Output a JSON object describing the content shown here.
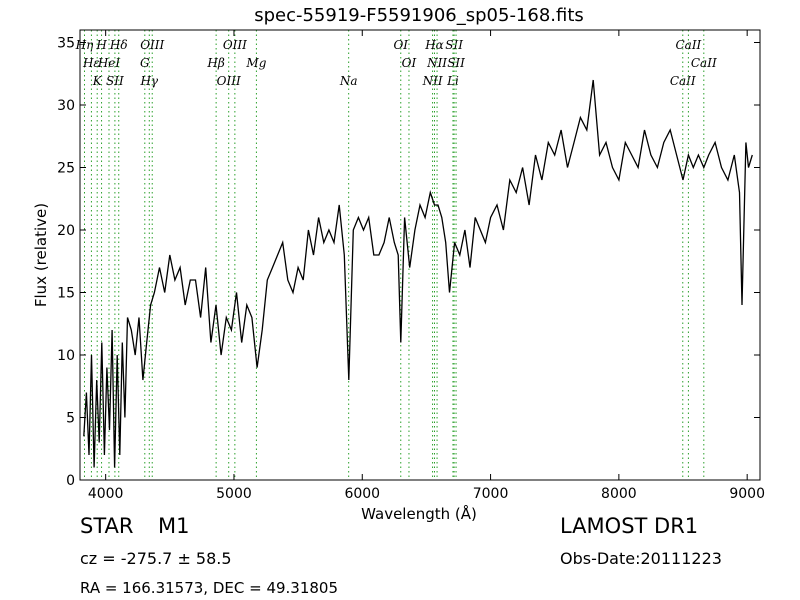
{
  "chart_data": {
    "type": "line",
    "title": "spec-55919-F5591906_sp05-168.fits",
    "xlabel": "Wavelength (Å)",
    "ylabel": "Flux (relative)",
    "xlim": [
      3800,
      9100
    ],
    "ylim": [
      0,
      36
    ],
    "xticks": [
      4000,
      5000,
      6000,
      7000,
      8000,
      9000
    ],
    "yticks": [
      0,
      5,
      10,
      15,
      20,
      25,
      30,
      35
    ],
    "grid": false,
    "line_color": "#000000",
    "marker_color": "#2ca02c",
    "series": [
      {
        "x": [
          3830,
          3850,
          3870,
          3890,
          3910,
          3930,
          3950,
          3970,
          3990,
          4010,
          4030,
          4050,
          4070,
          4090,
          4110,
          4130,
          4150,
          4170,
          4200,
          4230,
          4260,
          4290,
          4320,
          4350,
          4380,
          4420,
          4460,
          4500,
          4540,
          4580,
          4620,
          4660,
          4700,
          4740,
          4780,
          4820,
          4860,
          4900,
          4940,
          4980,
          5020,
          5060,
          5100,
          5140,
          5180,
          5220,
          5260,
          5300,
          5340,
          5380,
          5420,
          5460,
          5500,
          5540,
          5580,
          5620,
          5660,
          5700,
          5740,
          5780,
          5820,
          5860,
          5895,
          5930,
          5970,
          6010,
          6050,
          6090,
          6130,
          6170,
          6210,
          6250,
          6280,
          6300,
          6330,
          6370,
          6410,
          6450,
          6490,
          6530,
          6563,
          6590,
          6620,
          6650,
          6680,
          6720,
          6760,
          6800,
          6840,
          6880,
          6920,
          6960,
          7000,
          7050,
          7100,
          7150,
          7200,
          7250,
          7300,
          7350,
          7400,
          7450,
          7500,
          7550,
          7600,
          7650,
          7700,
          7750,
          7800,
          7850,
          7900,
          7950,
          8000,
          8050,
          8100,
          8150,
          8200,
          8250,
          8300,
          8350,
          8400,
          8450,
          8500,
          8542,
          8580,
          8620,
          8662,
          8700,
          8750,
          8800,
          8850,
          8900,
          8940,
          8960,
          8990,
          9010,
          9040
        ],
        "y": [
          3.5,
          7,
          2,
          10,
          1,
          8,
          3,
          11,
          2,
          9,
          4,
          12,
          1,
          10,
          2,
          11,
          5,
          13,
          12,
          10,
          13,
          8,
          11,
          14,
          15,
          17,
          15,
          18,
          16,
          17,
          14,
          16,
          16,
          13,
          17,
          11,
          14,
          10,
          13,
          12,
          15,
          11,
          14,
          13,
          9,
          12,
          16,
          17,
          18,
          19,
          16,
          15,
          17,
          16,
          20,
          18,
          21,
          19,
          20,
          19,
          22,
          18,
          8,
          20,
          21,
          20,
          21,
          18,
          18,
          19,
          21,
          19,
          18,
          11,
          21,
          17,
          20,
          22,
          21,
          23,
          22,
          22,
          21,
          19,
          15,
          19,
          18,
          20,
          17,
          21,
          20,
          19,
          21,
          22,
          20,
          24,
          23,
          25,
          22,
          26,
          24,
          27,
          26,
          28,
          25,
          27,
          29,
          28,
          32,
          26,
          27,
          25,
          24,
          27,
          26,
          25,
          28,
          26,
          25,
          27,
          28,
          26,
          24,
          26,
          25,
          26,
          25,
          26,
          27,
          25,
          24,
          26,
          23,
          14,
          27,
          25,
          26
        ]
      }
    ],
    "lines": [
      {
        "name": "Hη",
        "x": 3835
      },
      {
        "name": "Hε",
        "x": 3889
      },
      {
        "name": "K",
        "x": 3934
      },
      {
        "name": "H",
        "x": 3968
      },
      {
        "name": "HeI",
        "x": 4026
      },
      {
        "name": "SII",
        "x": 4072
      },
      {
        "name": "Hδ",
        "x": 4102
      },
      {
        "name": "G",
        "x": 4305
      },
      {
        "name": "Hγ",
        "x": 4340
      },
      {
        "name": "OIII",
        "x": 4363
      },
      {
        "name": "Hβ",
        "x": 4861
      },
      {
        "name": "OIII",
        "x": 4959
      },
      {
        "name": "OIII",
        "x": 5007
      },
      {
        "name": "Mg",
        "x": 5175
      },
      {
        "name": "Na",
        "x": 5894
      },
      {
        "name": "OI",
        "x": 6300
      },
      {
        "name": "OI",
        "x": 6364
      },
      {
        "name": "NII",
        "x": 6548
      },
      {
        "name": "Hα",
        "x": 6563
      },
      {
        "name": "NII",
        "x": 6583
      },
      {
        "name": "Li",
        "x": 6707
      },
      {
        "name": "SII",
        "x": 6716
      },
      {
        "name": "SII",
        "x": 6731
      },
      {
        "name": "CaII",
        "x": 8498
      },
      {
        "name": "CaII",
        "x": 8542
      },
      {
        "name": "CaII",
        "x": 8662
      }
    ]
  },
  "footer": {
    "class_label": "STAR",
    "subclass": "M1",
    "survey": "LAMOST DR1",
    "cz": "cz = -275.7 ± 58.5",
    "obs_date": "Obs-Date:20111223",
    "coords": "RA = 166.31573, DEC = 49.31805"
  }
}
